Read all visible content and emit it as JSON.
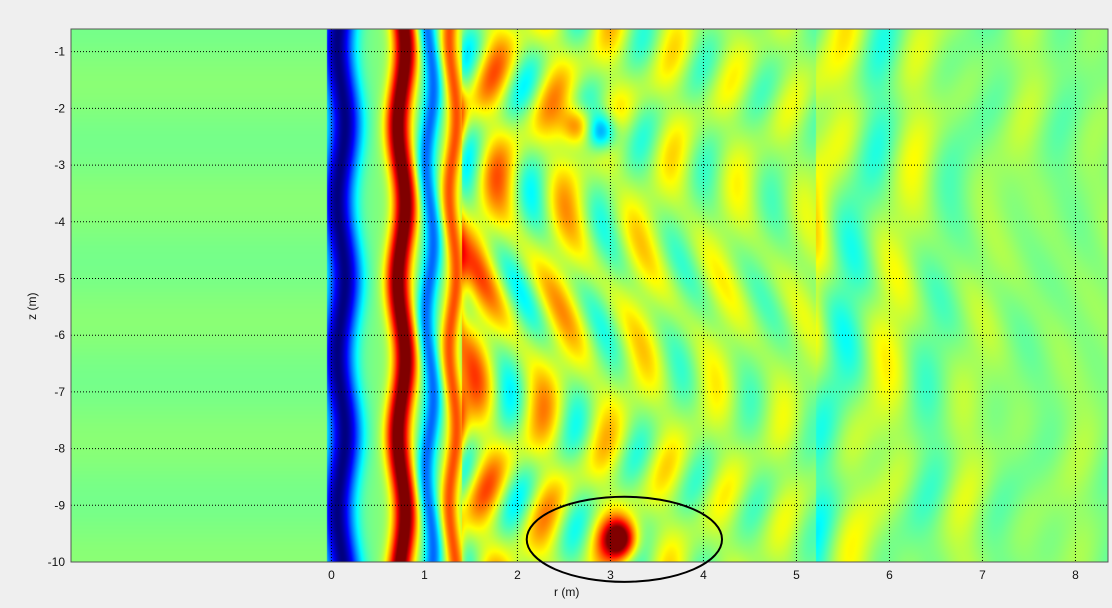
{
  "chart_data": {
    "type": "heatmap",
    "title": "",
    "xlabel": "r (m)",
    "ylabel": "z (m)",
    "x_ticks": [
      {
        "value": 0,
        "label": "0"
      },
      {
        "value": 1,
        "label": "1"
      },
      {
        "value": 2,
        "label": "2"
      },
      {
        "value": 3,
        "label": "3"
      },
      {
        "value": 4,
        "label": "4"
      },
      {
        "value": 5,
        "label": "5"
      },
      {
        "value": 6,
        "label": "6"
      },
      {
        "value": 7,
        "label": "7"
      },
      {
        "value": 8,
        "label": "8"
      }
    ],
    "y_ticks": [
      {
        "value": -1,
        "label": "-1"
      },
      {
        "value": -2,
        "label": "-2"
      },
      {
        "value": -3,
        "label": "-3"
      },
      {
        "value": -4,
        "label": "-4"
      },
      {
        "value": -5,
        "label": "-5"
      },
      {
        "value": -6,
        "label": "-6"
      },
      {
        "value": -7,
        "label": "-7"
      },
      {
        "value": -8,
        "label": "-8"
      },
      {
        "value": -9,
        "label": "-9"
      },
      {
        "value": -10,
        "label": "-10"
      }
    ],
    "xlim": [
      -2.8,
      8.35
    ],
    "ylim": [
      -10,
      -0.6
    ],
    "colormap": "jet",
    "grid": true,
    "grid_style": "dotted",
    "annotation": {
      "shape": "ellipse",
      "center_r": 3.15,
      "center_z": -9.6,
      "radius_r": 1.05,
      "radius_z": 0.75,
      "color": "#000000"
    },
    "field_features": [
      {
        "kind": "band",
        "r": 0.1,
        "width": 0.18,
        "amplitude": -1.0
      },
      {
        "kind": "band",
        "r": 0.75,
        "width": 0.13,
        "amplitude": 1.15
      },
      {
        "kind": "band",
        "r": 1.05,
        "width": 0.1,
        "amplitude": -0.55
      },
      {
        "kind": "band",
        "r": 1.3,
        "width": 0.1,
        "amplitude": 0.6
      },
      {
        "kind": "hotspot",
        "r": 3.1,
        "z": -9.6,
        "amplitude": 1.1
      },
      {
        "kind": "hotspot",
        "r": 2.9,
        "z": -2.4,
        "amplitude": -0.8
      },
      {
        "kind": "hotspot",
        "r": 2.65,
        "z": -2.3,
        "amplitude": 0.7
      }
    ]
  }
}
